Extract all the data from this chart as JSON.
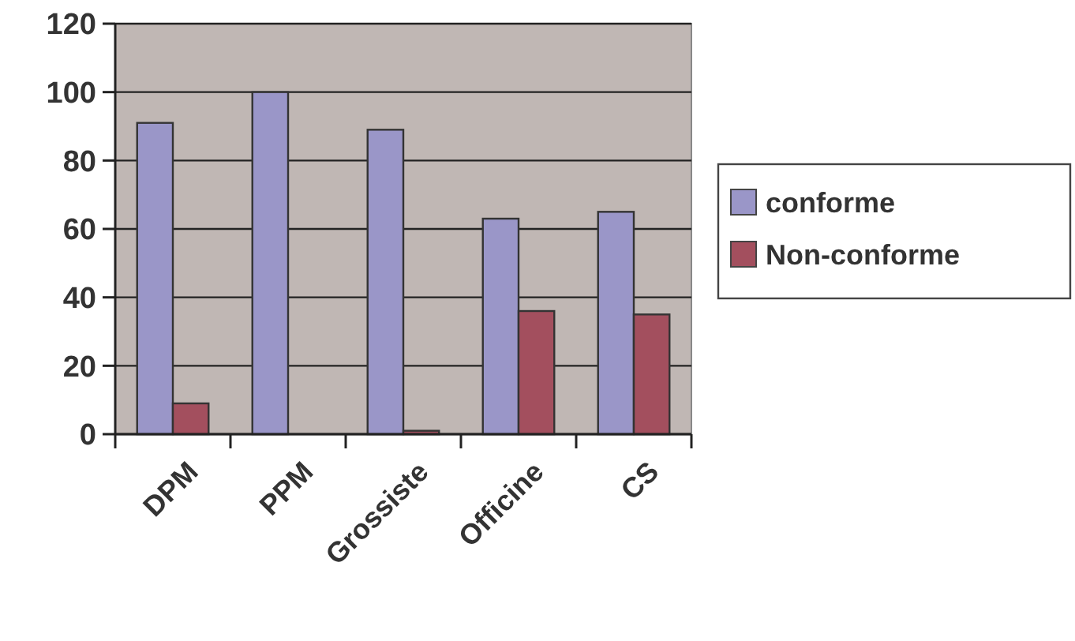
{
  "chart_data": {
    "type": "bar",
    "categories": [
      "DPM",
      "PPM",
      "Grossiste",
      "Officine",
      "CS"
    ],
    "series": [
      {
        "name": "conforme",
        "color": "#9a96c8",
        "values": [
          91,
          100,
          89,
          63,
          65
        ]
      },
      {
        "name": "Non-conforme",
        "color": "#a34f5e",
        "values": [
          9,
          0,
          1,
          36,
          35
        ]
      }
    ],
    "ylim": [
      0,
      120
    ],
    "yticks": [
      0,
      20,
      40,
      60,
      80,
      100,
      120
    ],
    "grid": "y",
    "legend": "right"
  }
}
